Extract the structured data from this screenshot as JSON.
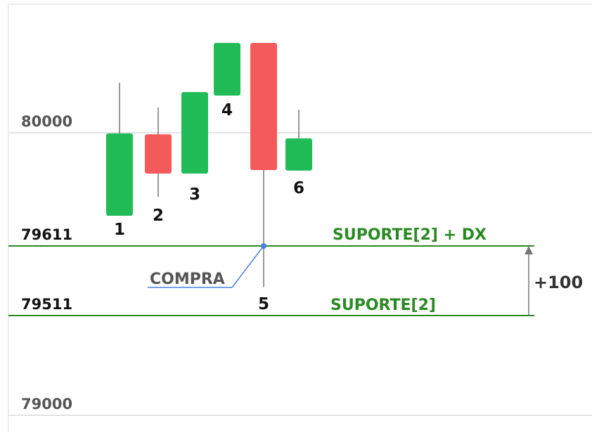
{
  "chart_data": {
    "type": "candlestick",
    "categories": [
      "1",
      "2",
      "3",
      "4",
      "5",
      "6"
    ],
    "open": [
      79715,
      79995,
      79860,
      80128,
      80309,
      79870
    ],
    "high": [
      80172,
      80087,
      80140,
      80309,
      80309,
      80080
    ],
    "low": [
      79715,
      79780,
      79860,
      80128,
      79552,
      79870
    ],
    "close": [
      79998,
      79860,
      80140,
      80309,
      79872,
      79981
    ],
    "up_color": "#21bb58",
    "down_color": "#f55a5a",
    "yticks": [
      79000,
      79511,
      79611,
      80000
    ],
    "level_labels": [
      "SUPORTE[2]",
      "SUPORTE[2] + DX"
    ],
    "buy_label": "COMPRA",
    "distance_label": "+100"
  }
}
